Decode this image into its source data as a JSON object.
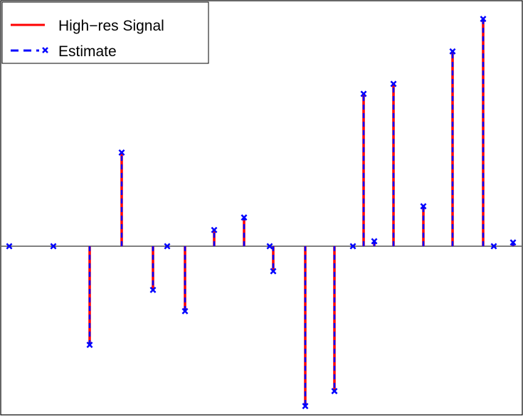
{
  "chart_data": {
    "type": "stem",
    "title": "",
    "xlabel": "",
    "ylabel": "",
    "xlim": [
      0,
      735
    ],
    "ylim": [
      -9.3,
      7.2
    ],
    "grid": false,
    "legend_position": "top-left",
    "baseline": 0,
    "series": [
      {
        "name": "High−res Signal",
        "style": "solid",
        "color": "#ff0000",
        "x": [
          13,
          75,
          126,
          171,
          215,
          235,
          260,
          301,
          343,
          379,
          384,
          429,
          470,
          496,
          511,
          526,
          553,
          595,
          636,
          679,
          694,
          721
        ],
        "y": [
          0.0,
          0.0,
          -3.95,
          3.75,
          -1.75,
          0.0,
          -2.6,
          0.65,
          1.15,
          0.0,
          -1.0,
          -6.4,
          -5.8,
          0.0,
          6.1,
          0.2,
          6.5,
          1.6,
          7.8,
          9.1,
          0.0,
          0.15
        ]
      },
      {
        "name": "Estimate",
        "style": "dashed-x",
        "color": "#0000ff",
        "x": [
          13,
          75,
          126,
          171,
          215,
          235,
          260,
          301,
          343,
          379,
          384,
          429,
          470,
          496,
          511,
          526,
          553,
          595,
          636,
          679,
          694,
          721
        ],
        "y": [
          0.0,
          0.0,
          -3.95,
          3.75,
          -1.75,
          0.0,
          -2.6,
          0.65,
          1.15,
          0.0,
          -1.0,
          -6.4,
          -5.8,
          0.0,
          6.1,
          0.2,
          6.5,
          1.6,
          7.8,
          9.1,
          0.0,
          0.15
        ]
      }
    ],
    "legend": [
      {
        "label": "High−res Signal",
        "color": "#ff0000",
        "style": "solid"
      },
      {
        "label": "Estimate",
        "color": "#0000ff",
        "style": "dashed-x"
      }
    ]
  }
}
